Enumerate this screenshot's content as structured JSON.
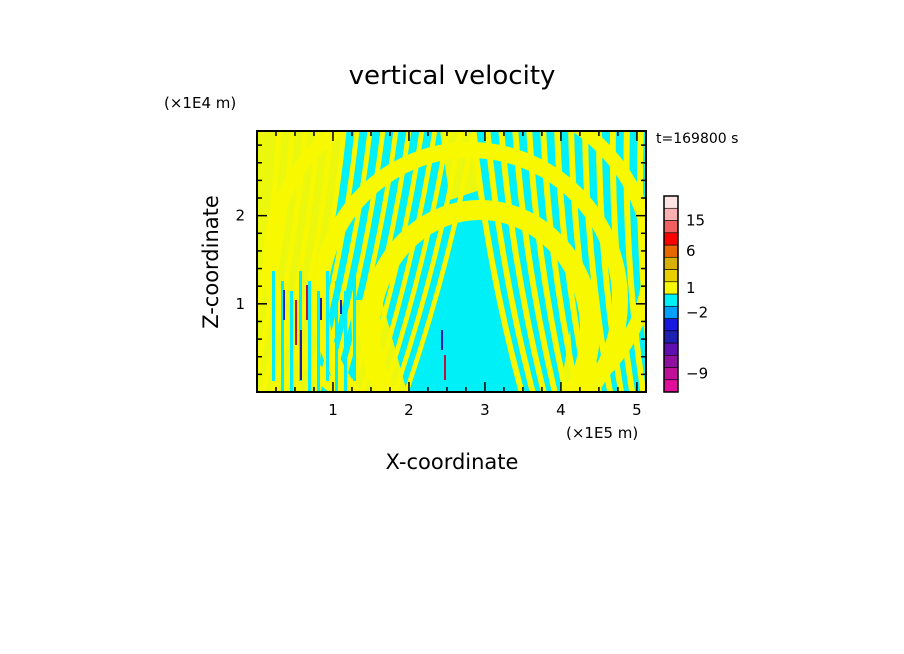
{
  "chart_data": {
    "type": "heatmap",
    "title": "vertical velocity",
    "xlabel": "X-coordinate",
    "ylabel": "Z-coordinate",
    "x_scale_label": "(×1E5 m)",
    "y_scale_label": "(×1E4 m)",
    "time_label": "t=169800 s",
    "xlim": [
      0,
      5.12
    ],
    "ylim": [
      0,
      2.96
    ],
    "x_ticks": [
      1,
      2,
      3,
      4,
      5
    ],
    "x_tick_labels": [
      "1",
      "2",
      "3",
      "4",
      "5"
    ],
    "y_ticks": [
      1,
      2
    ],
    "y_tick_labels": [
      "1",
      "2"
    ],
    "field_description": "Contour fill of vertical velocity; dominant values alternate between weak positive (yellow) and weak negative (cyan) in tilted wave bands, with isolated stronger cells near x=0.3-1.1 and x=2.4-2.5.",
    "colorbar": {
      "levels": [
        {
          "color": "#e0109a"
        },
        {
          "color": "#c0109a"
        },
        {
          "color": "#9010a0"
        },
        {
          "color": "#6010b0"
        },
        {
          "color": "#2020b0"
        },
        {
          "color": "#1818e0"
        },
        {
          "color": "#00a0ff"
        },
        {
          "color": "#00f0f8"
        },
        {
          "color": "#f8f800"
        },
        {
          "color": "#e8d000"
        },
        {
          "color": "#d8b000"
        },
        {
          "color": "#e86800"
        },
        {
          "color": "#ff0000"
        },
        {
          "color": "#f06060"
        },
        {
          "color": "#f8b0b0"
        },
        {
          "color": "#fce4e4"
        }
      ],
      "tick_labels": [
        "-9",
        "-2",
        "1",
        "6",
        "15"
      ],
      "tick_level_index": [
        1.5,
        6.5,
        8.5,
        11.5,
        14.0
      ]
    },
    "colors": {
      "positive": "#f8f800",
      "negative": "#00f0f8",
      "strong_negative": "#2020b0",
      "strong_positive": "#c01040"
    }
  }
}
